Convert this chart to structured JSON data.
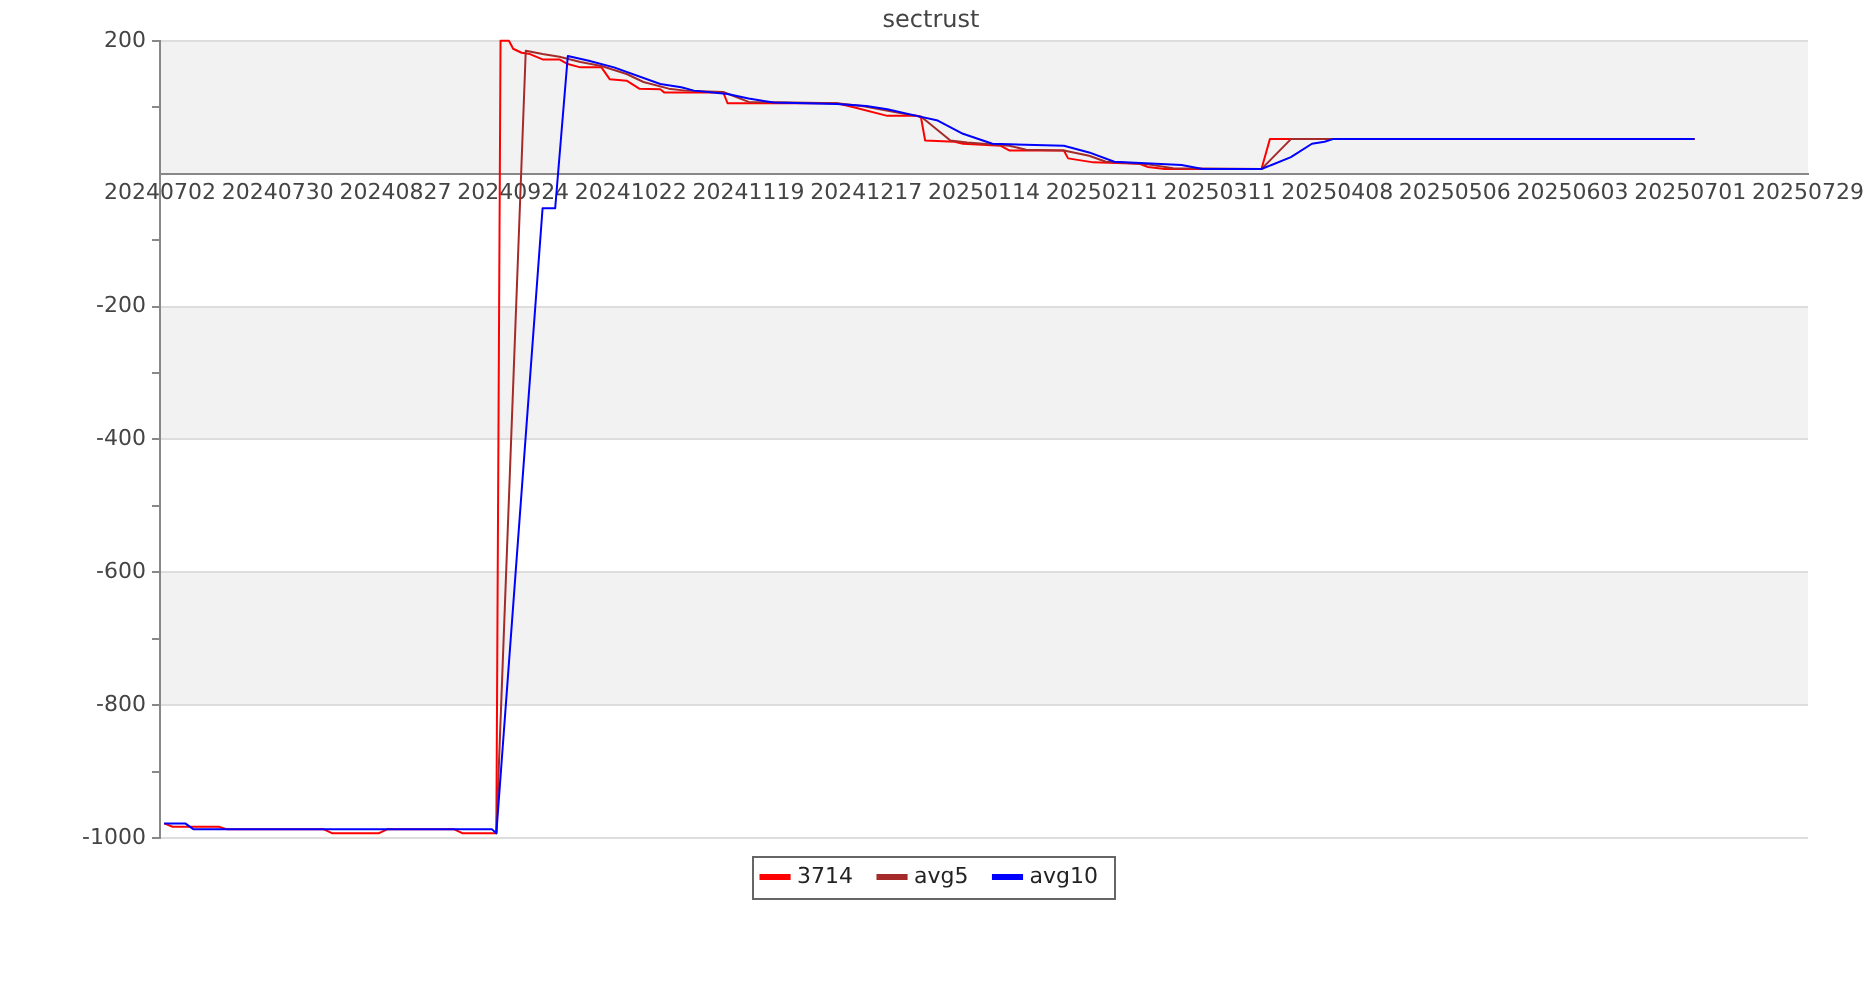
{
  "chart_data": {
    "type": "line",
    "title": "sectrust",
    "xlim": [
      "2024-07-02",
      "2025-07-29"
    ],
    "xticks": [
      {
        "value": "2024-07-02",
        "label": "20240702"
      },
      {
        "value": "2024-07-30",
        "label": "20240730"
      },
      {
        "value": "2024-08-27",
        "label": "20240827"
      },
      {
        "value": "2024-09-24",
        "label": "20240924"
      },
      {
        "value": "2024-10-22",
        "label": "20241022"
      },
      {
        "value": "2024-11-19",
        "label": "20241119"
      },
      {
        "value": "2024-12-17",
        "label": "20241217"
      },
      {
        "value": "2025-01-14",
        "label": "20250114"
      },
      {
        "value": "2025-02-11",
        "label": "20250211"
      },
      {
        "value": "2025-03-11",
        "label": "20250311"
      },
      {
        "value": "2025-04-08",
        "label": "20250408"
      },
      {
        "value": "2025-05-06",
        "label": "20250506"
      },
      {
        "value": "2025-06-03",
        "label": "20250603"
      },
      {
        "value": "2025-07-01",
        "label": "20250701"
      },
      {
        "value": "2025-07-29",
        "label": "20250729"
      }
    ],
    "ylim": [
      -1000,
      200
    ],
    "yticks": [
      200,
      {
        "value": 100,
        "label": null
      },
      {
        "value": -100,
        "label": null
      },
      -200,
      {
        "value": -300,
        "label": null
      },
      -400,
      {
        "value": -500,
        "label": null
      },
      -600,
      {
        "value": -700,
        "label": null
      },
      -800,
      {
        "value": -900,
        "label": null
      },
      -1000
    ],
    "grid": "y",
    "legend": "bottom",
    "marker": "none",
    "line_style": "solid",
    "bands": [
      {
        "axis": "y",
        "from": 0,
        "to": 200,
        "color": "#f2f2f2"
      },
      {
        "axis": "y",
        "from": -400,
        "to": -200,
        "color": "#f2f2f2"
      },
      {
        "axis": "y",
        "from": -800,
        "to": -600,
        "color": "#f2f2f2"
      }
    ],
    "series": [
      {
        "name": "3714",
        "color": "#ff0000",
        "x": [
          "2024-07-03",
          "2024-07-05",
          "2024-07-16",
          "2024-07-18",
          "2024-08-10",
          "2024-08-12",
          "2024-08-23",
          "2024-08-25",
          "2024-09-10",
          "2024-09-12",
          "2024-09-20",
          "2024-09-21",
          "2024-09-23",
          "2024-09-24",
          "2024-09-26",
          "2024-09-28",
          "2024-10-01",
          "2024-10-05",
          "2024-10-07",
          "2024-10-10",
          "2024-10-15",
          "2024-10-17",
          "2024-10-21",
          "2024-10-24",
          "2024-10-29",
          "2024-10-30",
          "2024-11-13",
          "2024-11-14",
          "2024-12-10",
          "2024-12-14",
          "2024-12-22",
          "2024-12-29",
          "2024-12-30",
          "2024-12-31",
          "2025-01-07",
          "2025-01-09",
          "2025-01-18",
          "2025-01-20",
          "2025-02-02",
          "2025-02-03",
          "2025-02-09",
          "2025-02-20",
          "2025-02-22",
          "2025-02-26",
          "2025-03-21",
          "2025-03-23",
          "2025-07-02"
        ],
        "values": [
          -978,
          -983,
          -983,
          -987,
          -987,
          -993,
          -993,
          -987,
          -987,
          -993,
          -993,
          200,
          200,
          188,
          182,
          180,
          172,
          172,
          165,
          160,
          160,
          142,
          140,
          128,
          127,
          122,
          122,
          106,
          106,
          100,
          87,
          87,
          85,
          50,
          48,
          45,
          42,
          35,
          35,
          23,
          17,
          15,
          10,
          7,
          7,
          52,
          52
        ]
      },
      {
        "name": "avg5",
        "color": "#a52a2a",
        "x": [
          "2024-09-20",
          "2024-09-27",
          "2024-10-01",
          "2024-10-05",
          "2024-10-10",
          "2024-10-15",
          "2024-10-21",
          "2024-10-25",
          "2024-10-31",
          "2024-11-04",
          "2024-11-13",
          "2024-11-19",
          "2024-12-10",
          "2024-12-16",
          "2024-12-26",
          "2024-12-30",
          "2025-01-06",
          "2025-01-10",
          "2025-01-20",
          "2025-01-24",
          "2025-02-02",
          "2025-02-08",
          "2025-02-12",
          "2025-02-22",
          "2025-02-28",
          "2025-03-21",
          "2025-03-28",
          "2025-07-02"
        ],
        "values": [
          -993,
          185,
          180,
          176,
          168,
          162,
          150,
          138,
          128,
          125,
          123,
          108,
          106,
          102,
          90,
          86,
          50,
          47,
          42,
          36,
          35,
          27,
          18,
          14,
          8,
          7,
          52,
          52
        ]
      },
      {
        "name": "avg10",
        "color": "#0000ff",
        "x": [
          "2024-07-03",
          "2024-07-08",
          "2024-07-10",
          "2024-09-19",
          "2024-09-20",
          "2024-10-01",
          "2024-10-04",
          "2024-10-07",
          "2024-10-12",
          "2024-10-18",
          "2024-10-29",
          "2024-11-03",
          "2024-11-06",
          "2024-11-14",
          "2024-11-19",
          "2024-11-25",
          "2024-12-10",
          "2024-12-17",
          "2024-12-22",
          "2024-12-29",
          "2025-01-03",
          "2025-01-09",
          "2025-01-16",
          "2025-02-02",
          "2025-02-08",
          "2025-02-14",
          "2025-03-02",
          "2025-03-07",
          "2025-03-21",
          "2025-03-28",
          "2025-04-02",
          "2025-04-05",
          "2025-04-07",
          "2025-07-02"
        ],
        "values": [
          -978,
          -978,
          -987,
          -987,
          -993,
          -52,
          -52,
          177,
          170,
          160,
          135,
          130,
          125,
          120,
          113,
          107,
          105,
          102,
          97,
          87,
          80,
          60,
          45,
          42,
          32,
          18,
          13,
          7,
          7,
          25,
          45,
          48,
          52,
          52
        ]
      }
    ]
  }
}
